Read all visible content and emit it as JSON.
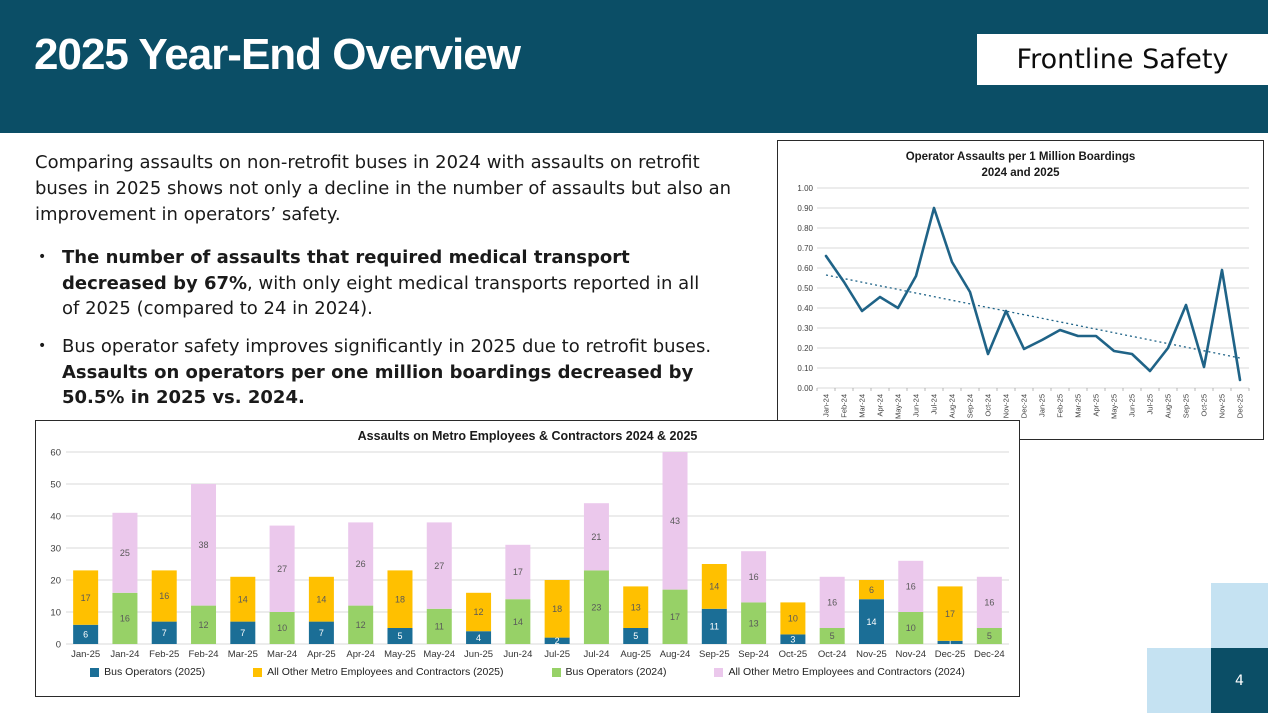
{
  "header": {
    "title": "2025 Year-End Overview",
    "badge": "Frontline Safety"
  },
  "intro": "Comparing assaults on non-retrofit buses in 2024 with assaults on retrofit buses in 2025 shows not only a decline in the number of assaults but also an improvement in operators’ safety.",
  "bullets": [
    {
      "bold": "The number of assaults that required medical transport decreased by 67%",
      "rest": ", with only eight medical transports reported in all of 2025 (compared to 24 in 2024)."
    },
    {
      "lead": "Bus operator safety improves significantly in 2025 due to retrofit buses. ",
      "bold": "Assaults on operators per one million boardings decreased by 50.5% in 2025 vs. 2024."
    }
  ],
  "page_number": "4",
  "colors": {
    "header_teal": "#0B4E66",
    "square_teal": "#0B4E66",
    "light_blue": "#C5E2F2"
  },
  "chart_data": [
    {
      "type": "line",
      "title": "Operator Assaults per 1 Million Boardings",
      "subtitle": "2024 and 2025",
      "x": [
        "Jan-24",
        "Feb-24",
        "Mar-24",
        "Apr-24",
        "May-24",
        "Jun-24",
        "Jul-24",
        "Aug-24",
        "Sep-24",
        "Oct-24",
        "Nov-24",
        "Dec-24",
        "Jan-25",
        "Feb-25",
        "Mar-25",
        "Apr-25",
        "May-25",
        "Jun-25",
        "Jul-25",
        "Aug-25",
        "Sep-25",
        "Oct-25",
        "Nov-25",
        "Dec-25"
      ],
      "values": [
        0.66,
        0.53,
        0.385,
        0.455,
        0.4,
        0.56,
        0.9,
        0.63,
        0.48,
        0.17,
        0.385,
        0.195,
        0.24,
        0.29,
        0.26,
        0.26,
        0.185,
        0.17,
        0.085,
        0.2,
        0.415,
        0.105,
        0.59,
        0.04
      ],
      "trendline": {
        "start": 0.565,
        "end": 0.15,
        "style": "dotted"
      },
      "ylim": [
        0,
        1.0
      ],
      "ytick_step": 0.1,
      "ytick_format_decimals": 2,
      "grid": true,
      "legend_position": "none",
      "line_color": "#1F6387"
    },
    {
      "type": "bar",
      "stacked": true,
      "title": "Assaults on Metro Employees & Contractors 2024 & 2025",
      "categories": [
        "Jan-25",
        "Jan-24",
        "Feb-25",
        "Feb-24",
        "Mar-25",
        "Mar-24",
        "Apr-25",
        "Apr-24",
        "May-25",
        "May-24",
        "Jun-25",
        "Jun-24",
        "Jul-25",
        "Jul-24",
        "Aug-25",
        "Aug-24",
        "Sep-25",
        "Sep-24",
        "Oct-25",
        "Oct-24",
        "Nov-25",
        "Nov-24",
        "Dec-25",
        "Dec-24"
      ],
      "series": [
        {
          "name": "Bus Operators (2025)",
          "color": "#1B6E96",
          "label_color": "#ffffff",
          "values": [
            6,
            null,
            7,
            null,
            7,
            null,
            7,
            null,
            5,
            null,
            4,
            null,
            2,
            null,
            5,
            null,
            11,
            null,
            3,
            null,
            14,
            null,
            1,
            null
          ]
        },
        {
          "name": "All Other Metro Employees and Contractors (2025)",
          "color": "#FFC000",
          "label_color": "#595959",
          "values": [
            17,
            null,
            16,
            null,
            14,
            null,
            14,
            null,
            18,
            null,
            12,
            null,
            18,
            null,
            13,
            null,
            14,
            null,
            10,
            null,
            6,
            null,
            17,
            null
          ]
        },
        {
          "name": "Bus Operators (2024)",
          "color": "#97D167",
          "label_color": "#595959",
          "values": [
            null,
            16,
            null,
            12,
            null,
            10,
            null,
            12,
            null,
            11,
            null,
            14,
            null,
            23,
            null,
            17,
            null,
            13,
            null,
            5,
            null,
            10,
            null,
            5
          ]
        },
        {
          "name": "All Other Metro Employees and Contractors (2024)",
          "color": "#EBC8EC",
          "label_color": "#595959",
          "values": [
            null,
            25,
            null,
            38,
            null,
            27,
            null,
            26,
            null,
            27,
            null,
            17,
            null,
            21,
            null,
            43,
            null,
            16,
            null,
            16,
            null,
            16,
            null,
            16
          ]
        }
      ],
      "ylim": [
        0,
        60
      ],
      "ytick_step": 10,
      "grid": true,
      "data_labels": true,
      "legend_position": "bottom"
    }
  ]
}
